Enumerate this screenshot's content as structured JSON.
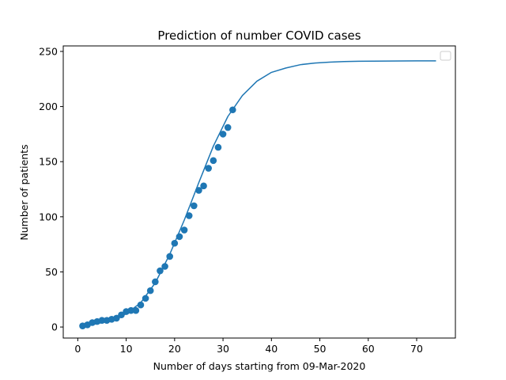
{
  "chart_data": {
    "type": "scatter",
    "title": "Prediction of number COVID cases",
    "xlabel": "Number of days starting from 09-Mar-2020",
    "ylabel": "Number of patients",
    "xlim": [
      -3,
      78
    ],
    "ylim": [
      -10,
      255
    ],
    "xticks": [
      0,
      10,
      20,
      30,
      40,
      50,
      60,
      70
    ],
    "yticks": [
      0,
      50,
      100,
      150,
      200,
      250
    ],
    "grid": false,
    "legend": "top-right",
    "colors": {
      "series": "#1f77b4"
    },
    "series": [
      {
        "kind": "scatter",
        "x": [
          1,
          2,
          3,
          4,
          5,
          6,
          7,
          8,
          9,
          10,
          11,
          12,
          13,
          14,
          15,
          16,
          17,
          18,
          19,
          20,
          21,
          22,
          23,
          24,
          25,
          26,
          27,
          28,
          29,
          30,
          31,
          32
        ],
        "y": [
          1,
          2,
          4,
          5,
          6,
          6,
          7,
          8,
          11,
          14,
          15,
          15,
          20,
          26,
          33,
          41,
          51,
          55,
          64,
          76,
          82,
          88,
          101,
          110,
          124,
          128,
          144,
          151,
          163,
          175,
          181,
          197
        ]
      },
      {
        "kind": "line",
        "x": [
          1,
          4,
          7,
          10,
          13,
          16,
          19,
          22,
          25,
          28,
          31,
          34,
          37,
          40,
          43,
          46,
          49,
          52,
          55,
          58,
          61,
          64,
          67,
          70,
          74
        ],
        "y": [
          1,
          3,
          6,
          12,
          22,
          40,
          66,
          97,
          131,
          164,
          191,
          210,
          223,
          231,
          235,
          238,
          239.5,
          240.3,
          240.8,
          241.1,
          241.2,
          241.3,
          241.35,
          241.4,
          241.4
        ]
      }
    ]
  }
}
